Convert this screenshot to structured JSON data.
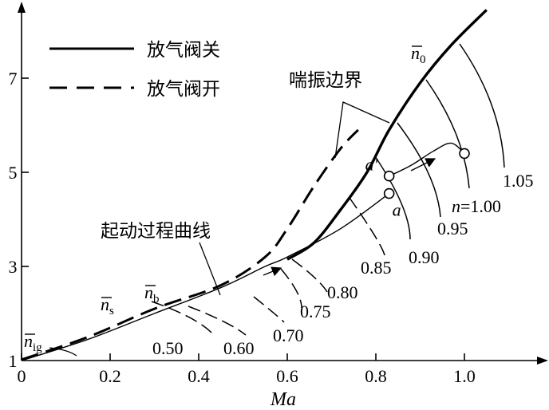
{
  "chart_data": {
    "type": "line",
    "title": "",
    "xlabel": "Ma",
    "ylabel": "",
    "xlim": [
      0,
      1.17
    ],
    "ylim": [
      1,
      8.9
    ],
    "grid": false,
    "x_ticks": [
      {
        "value": 0,
        "label": "0"
      },
      {
        "value": 0.2,
        "label": "0.2"
      },
      {
        "value": 0.4,
        "label": "0.4"
      },
      {
        "value": 0.6,
        "label": "0.6"
      },
      {
        "value": 0.8,
        "label": "0.8"
      },
      {
        "value": 1.0,
        "label": "1.0"
      }
    ],
    "y_ticks": [
      {
        "value": 1,
        "label": "1"
      },
      {
        "value": 3,
        "label": "3"
      },
      {
        "value": 5,
        "label": "5"
      },
      {
        "value": 7,
        "label": "7"
      }
    ],
    "legend": {
      "placement": "top-left",
      "entries": [
        {
          "label": "放气阀关",
          "style": "solid"
        },
        {
          "label": "放气阀开",
          "style": "dashed"
        }
      ]
    },
    "series": [
      {
        "name": "放气阀关",
        "style": "solid",
        "role": "surge-boundary",
        "points": [
          [
            0.6,
            3.15
          ],
          [
            0.66,
            3.5
          ],
          [
            0.72,
            4.2
          ],
          [
            0.78,
            5.0
          ],
          [
            0.83,
            5.9
          ],
          [
            0.9,
            6.9
          ],
          [
            0.97,
            7.7
          ],
          [
            1.05,
            8.45
          ]
        ]
      },
      {
        "name": "放气阀开",
        "style": "dashed",
        "role": "surge-boundary",
        "points": [
          [
            0.0,
            1.02
          ],
          [
            0.15,
            1.5
          ],
          [
            0.3,
            2.1
          ],
          [
            0.45,
            2.6
          ],
          [
            0.55,
            3.2
          ],
          [
            0.6,
            3.8
          ],
          [
            0.66,
            4.7
          ],
          [
            0.72,
            5.5
          ],
          [
            0.76,
            5.9
          ]
        ]
      },
      {
        "style": "thin",
        "role": "starting-process",
        "points": [
          [
            0.0,
            1.0
          ],
          [
            0.15,
            1.45
          ],
          [
            0.3,
            2.0
          ],
          [
            0.45,
            2.55
          ],
          [
            0.55,
            3.0
          ],
          [
            0.6,
            3.2
          ],
          [
            0.72,
            3.8
          ],
          [
            0.83,
            4.55
          ]
        ]
      },
      {
        "style": "thin",
        "role": "starting-process-a-prime",
        "points": [
          [
            0.83,
            4.92
          ],
          [
            0.88,
            5.15
          ],
          [
            0.93,
            5.45
          ],
          [
            0.97,
            5.62
          ],
          [
            1.0,
            5.4
          ]
        ]
      }
    ],
    "speed_lines": [
      {
        "label": "0.50",
        "style": "dashed"
      },
      {
        "label": "0.60",
        "style": "dashed"
      },
      {
        "label": "0.70",
        "style": "dashed"
      },
      {
        "label": "0.75",
        "style": "dashed"
      },
      {
        "label": "0.80",
        "style": "dashed"
      },
      {
        "label": "0.85",
        "style": "dashed"
      },
      {
        "label": "0.90",
        "style": "solid"
      },
      {
        "label": "0.95",
        "style": "solid"
      },
      {
        "label": "n=1.00",
        "style": "solid"
      },
      {
        "label": "1.05",
        "style": "solid"
      }
    ],
    "point_markers": [
      {
        "label": "a'",
        "x": 0.83,
        "y": 4.92
      },
      {
        "label": "a",
        "x": 0.83,
        "y": 4.55
      },
      {
        "label": "",
        "x": 1.0,
        "y": 5.4
      }
    ],
    "annotations": {
      "surge": "喘振边界",
      "start": "起动过程曲线",
      "n_ig": "n̄ig",
      "n_s": "n̄s",
      "n_b": "n̄b",
      "n_0": "n̄0"
    }
  }
}
